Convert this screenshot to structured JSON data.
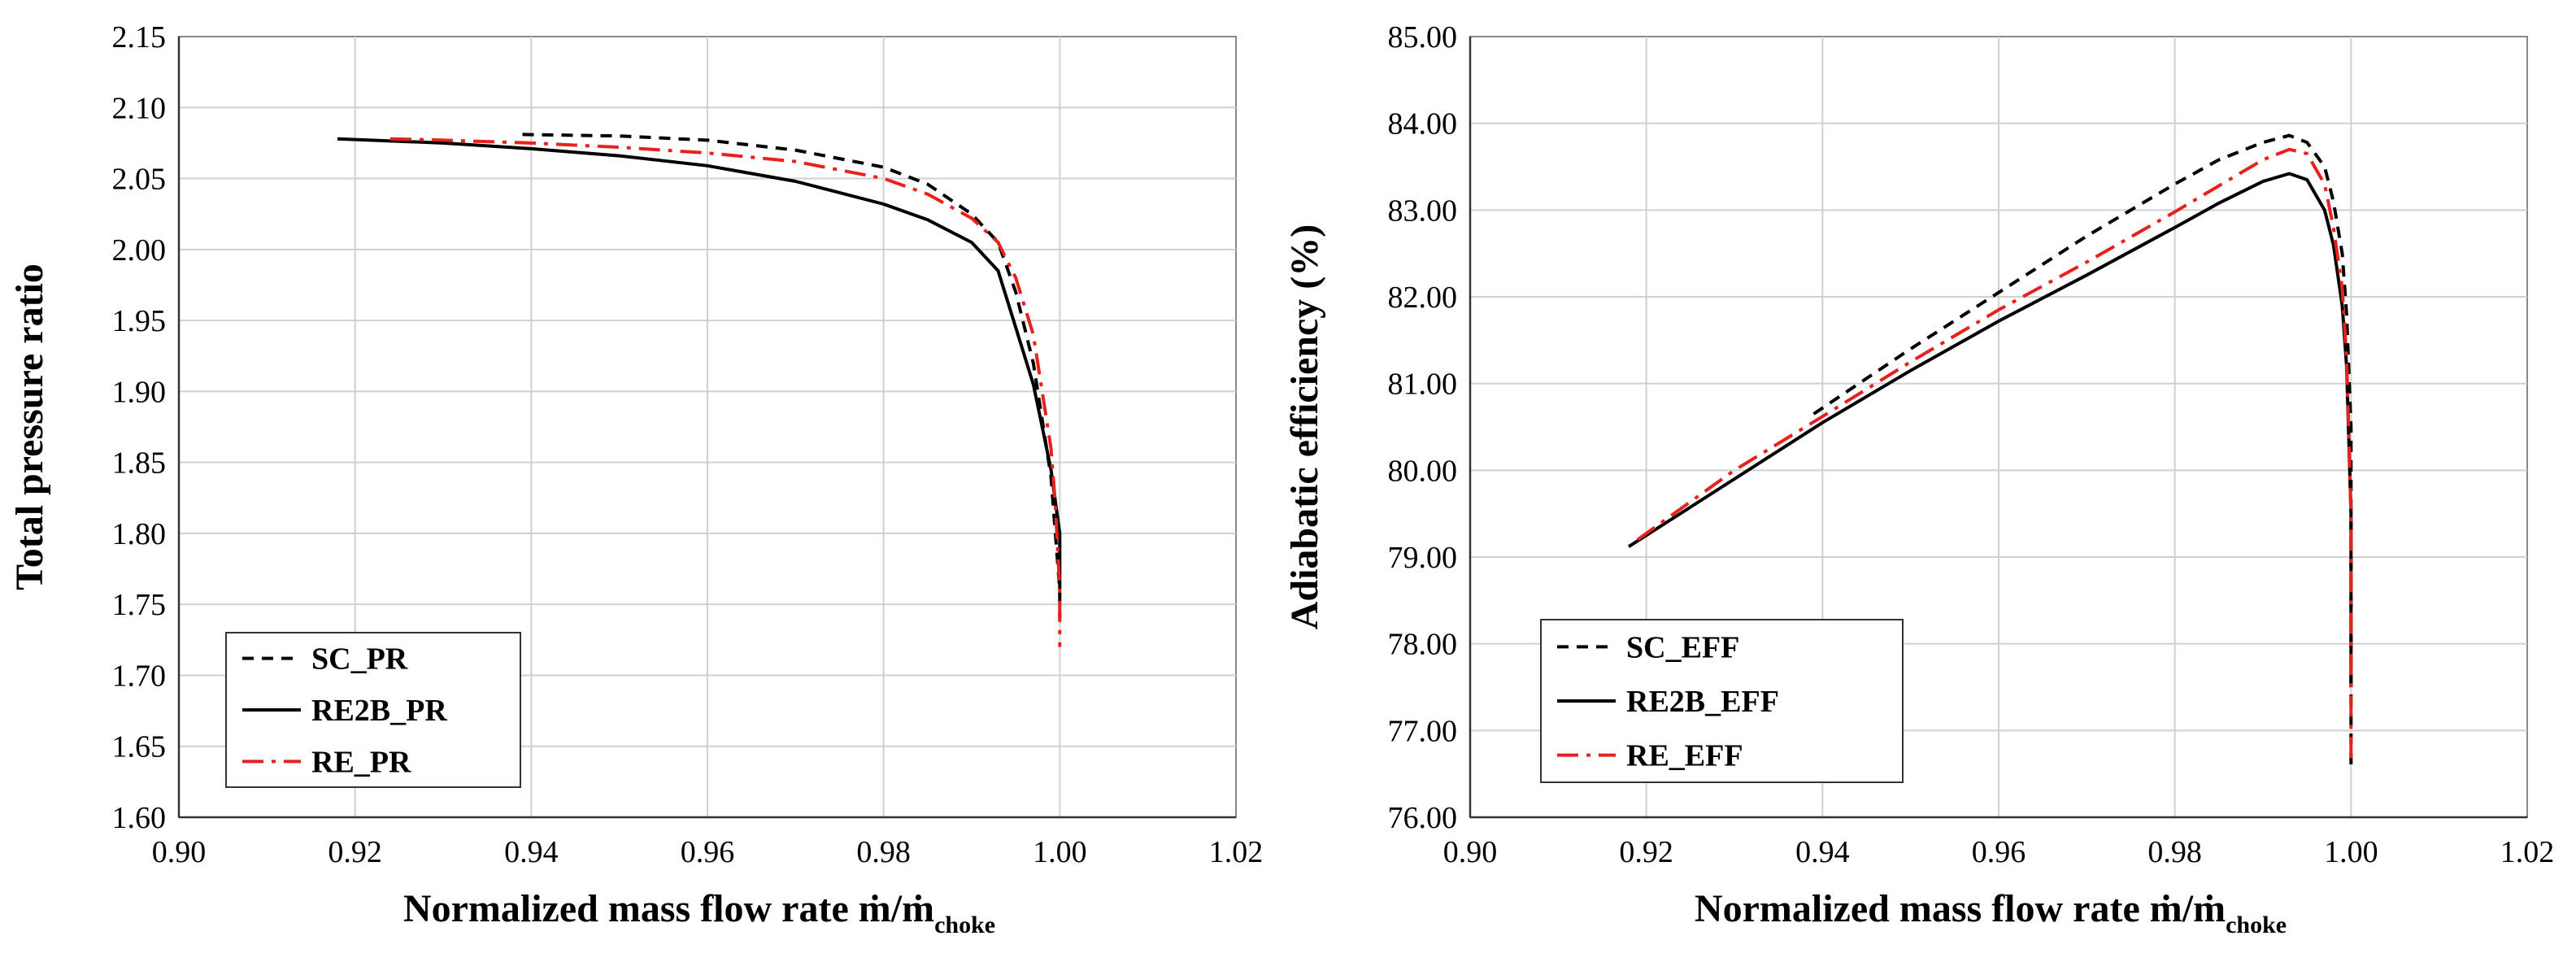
{
  "chart_data": [
    {
      "type": "line",
      "title": "",
      "xlabel": "Normalized mass flow rate ṁ/ṁ",
      "xlabel_sub": "choke",
      "ylabel": "Total pressure ratio",
      "xlim": [
        0.9,
        1.02
      ],
      "ylim": [
        1.6,
        2.15
      ],
      "xticks": [
        0.9,
        0.92,
        0.94,
        0.96,
        0.98,
        1.0,
        1.02
      ],
      "yticks": [
        1.6,
        1.65,
        1.7,
        1.75,
        1.8,
        1.85,
        1.9,
        1.95,
        2.0,
        2.05,
        2.1,
        2.15
      ],
      "x_decimals": 2,
      "y_decimals": 2,
      "grid": true,
      "legend_position": "bottom-left",
      "series": [
        {
          "name": "SC_PR",
          "color": "#000000",
          "dash": "dashed",
          "x": [
            0.939,
            0.95,
            0.96,
            0.97,
            0.98,
            0.985,
            0.99,
            0.993,
            0.995,
            0.997,
            0.998,
            0.999,
            0.9995,
            1.0,
            1.0
          ],
          "y": [
            2.081,
            2.08,
            2.077,
            2.07,
            2.058,
            2.046,
            2.025,
            2.005,
            1.97,
            1.92,
            1.88,
            1.84,
            1.8,
            1.76,
            1.74
          ]
        },
        {
          "name": "RE2B_PR",
          "color": "#000000",
          "dash": "solid",
          "x": [
            0.918,
            0.93,
            0.94,
            0.95,
            0.96,
            0.97,
            0.98,
            0.985,
            0.99,
            0.993,
            0.995,
            0.997,
            0.998,
            0.999,
            1.0,
            1.0
          ],
          "y": [
            2.078,
            2.075,
            2.071,
            2.066,
            2.059,
            2.048,
            2.032,
            2.021,
            2.005,
            1.985,
            1.945,
            1.905,
            1.875,
            1.845,
            1.8,
            1.76
          ]
        },
        {
          "name": "RE_PR",
          "color": "#e8211d",
          "dash": "dashdot",
          "x": [
            0.924,
            0.93,
            0.94,
            0.95,
            0.96,
            0.97,
            0.98,
            0.985,
            0.99,
            0.993,
            0.995,
            0.997,
            0.998,
            0.999,
            0.9995,
            1.0,
            1.0
          ],
          "y": [
            2.078,
            2.077,
            2.075,
            2.072,
            2.068,
            2.062,
            2.05,
            2.039,
            2.022,
            2.005,
            1.98,
            1.94,
            1.9,
            1.86,
            1.82,
            1.76,
            1.72
          ]
        }
      ]
    },
    {
      "type": "line",
      "title": "",
      "xlabel": "Normalized mass flow rate ṁ/ṁ",
      "xlabel_sub": "choke",
      "ylabel": "Adiabatic efficiency (%)",
      "xlim": [
        0.9,
        1.02
      ],
      "ylim": [
        76.0,
        85.0
      ],
      "xticks": [
        0.9,
        0.92,
        0.94,
        0.96,
        0.98,
        1.0,
        1.02
      ],
      "yticks": [
        76.0,
        77.0,
        78.0,
        79.0,
        80.0,
        81.0,
        82.0,
        83.0,
        84.0,
        85.0
      ],
      "x_decimals": 2,
      "y_decimals": 2,
      "grid": true,
      "legend_position": "bottom-left",
      "series": [
        {
          "name": "SC_EFF",
          "color": "#000000",
          "dash": "dashed",
          "x": [
            0.939,
            0.95,
            0.96,
            0.97,
            0.98,
            0.985,
            0.99,
            0.993,
            0.995,
            0.997,
            0.998,
            0.999,
            0.9995,
            1.0,
            1.0,
            1.0
          ],
          "y": [
            80.65,
            81.4,
            82.05,
            82.7,
            83.3,
            83.58,
            83.78,
            83.86,
            83.78,
            83.5,
            83.1,
            82.5,
            81.8,
            80.5,
            78.0,
            76.6
          ]
        },
        {
          "name": "RE2B_EFF",
          "color": "#000000",
          "dash": "solid",
          "x": [
            0.918,
            0.93,
            0.94,
            0.95,
            0.96,
            0.97,
            0.98,
            0.985,
            0.99,
            0.993,
            0.995,
            0.997,
            0.998,
            0.999,
            0.9995,
            1.0,
            1.0
          ],
          "y": [
            79.12,
            79.9,
            80.55,
            81.15,
            81.72,
            82.25,
            82.8,
            83.08,
            83.33,
            83.42,
            83.35,
            83.0,
            82.6,
            81.9,
            81.2,
            79.5,
            77.5
          ]
        },
        {
          "name": "RE_EFF",
          "color": "#e8211d",
          "dash": "dashdot",
          "x": [
            0.919,
            0.93,
            0.94,
            0.95,
            0.96,
            0.97,
            0.98,
            0.985,
            0.99,
            0.993,
            0.995,
            0.997,
            0.998,
            0.999,
            0.9995,
            1.0,
            1.0
          ],
          "y": [
            79.2,
            80.0,
            80.62,
            81.25,
            81.85,
            82.4,
            82.98,
            83.28,
            83.58,
            83.7,
            83.65,
            83.3,
            82.8,
            82.1,
            81.3,
            79.5,
            76.6
          ]
        }
      ]
    }
  ]
}
